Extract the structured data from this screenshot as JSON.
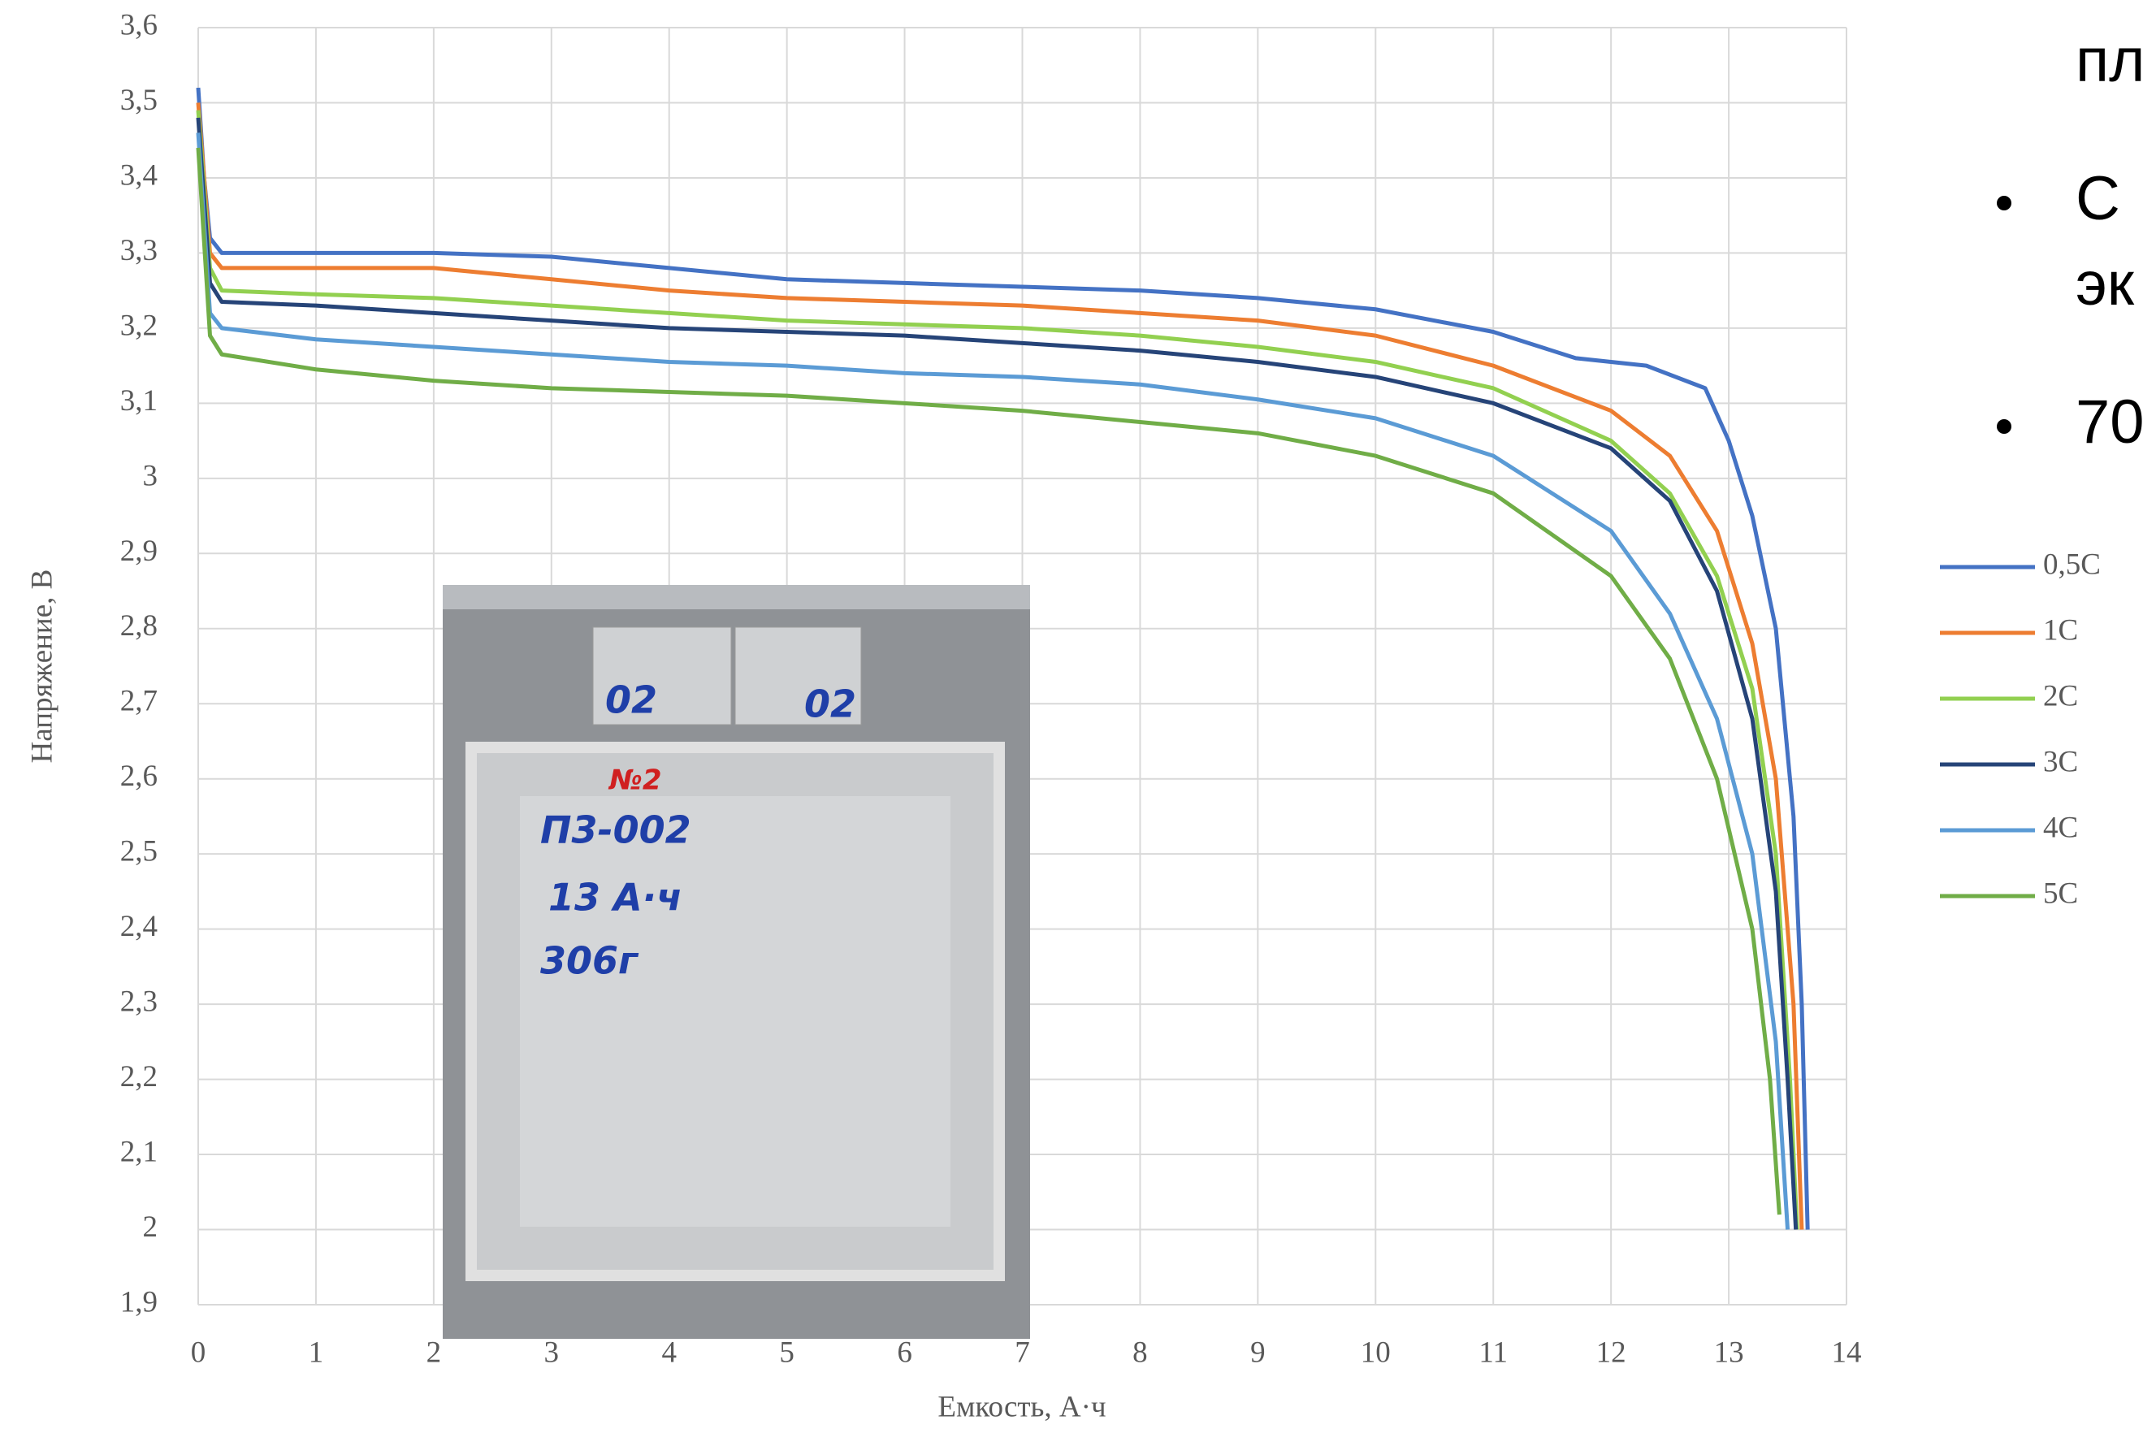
{
  "chart_data": {
    "type": "line",
    "y_label": "Напряжение, В",
    "x_label": "Емкость, А·ч",
    "xlim": [
      0,
      14
    ],
    "xticks": [
      0,
      1,
      2,
      3,
      4,
      5,
      6,
      7,
      8,
      9,
      10,
      11,
      12,
      13,
      14
    ],
    "ylim": [
      1.9,
      3.6
    ],
    "yticks": [
      {
        "value": 1.9,
        "label": "1,9"
      },
      {
        "value": 2,
        "label": "2"
      },
      {
        "value": 2.1,
        "label": "2,1"
      },
      {
        "value": 2.2,
        "label": "2,2"
      },
      {
        "value": 2.3,
        "label": "2,3"
      },
      {
        "value": 2.4,
        "label": "2,4"
      },
      {
        "value": 2.5,
        "label": "2,5"
      },
      {
        "value": 2.6,
        "label": "2,6"
      },
      {
        "value": 2.7,
        "label": "2,7"
      },
      {
        "value": 2.8,
        "label": "2,8"
      },
      {
        "value": 2.9,
        "label": "2,9"
      },
      {
        "value": 3,
        "label": "3"
      },
      {
        "value": 3.1,
        "label": "3,1"
      },
      {
        "value": 3.2,
        "label": "3,2"
      },
      {
        "value": 3.3,
        "label": "3,3"
      },
      {
        "value": 3.4,
        "label": "3,4"
      },
      {
        "value": 3.5,
        "label": "3,5"
      },
      {
        "value": 3.6,
        "label": "3,6"
      }
    ],
    "grid": true,
    "legend": "right",
    "series": [
      {
        "name": "0,5C",
        "color": "#4472c4",
        "x": [
          0,
          0.05,
          0.1,
          0.2,
          1,
          2,
          3,
          4,
          5,
          6,
          7,
          8,
          9,
          10,
          11,
          11.7,
          12.3,
          12.8,
          13.0,
          13.2,
          13.4,
          13.55,
          13.62,
          13.67
        ],
        "values": [
          3.52,
          3.4,
          3.32,
          3.3,
          3.3,
          3.3,
          3.295,
          3.28,
          3.265,
          3.26,
          3.255,
          3.25,
          3.24,
          3.225,
          3.195,
          3.16,
          3.15,
          3.12,
          3.05,
          2.95,
          2.8,
          2.55,
          2.3,
          2.0
        ]
      },
      {
        "name": "1C",
        "color": "#ed7d31",
        "x": [
          0,
          0.1,
          0.2,
          1,
          2,
          3,
          4,
          5,
          6,
          7,
          8,
          9,
          10,
          11,
          12,
          12.5,
          12.9,
          13.2,
          13.4,
          13.55,
          13.62
        ],
        "values": [
          3.5,
          3.3,
          3.28,
          3.28,
          3.28,
          3.265,
          3.25,
          3.24,
          3.235,
          3.23,
          3.22,
          3.21,
          3.19,
          3.15,
          3.09,
          3.03,
          2.93,
          2.78,
          2.6,
          2.3,
          2.0
        ]
      },
      {
        "name": "2C",
        "color": "#92d050",
        "x": [
          0,
          0.1,
          0.2,
          1,
          2,
          3,
          4,
          5,
          6,
          7,
          8,
          9,
          10,
          11,
          12,
          12.5,
          12.9,
          13.2,
          13.4,
          13.52,
          13.58
        ],
        "values": [
          3.49,
          3.28,
          3.25,
          3.245,
          3.24,
          3.23,
          3.22,
          3.21,
          3.205,
          3.2,
          3.19,
          3.175,
          3.155,
          3.12,
          3.05,
          2.98,
          2.87,
          2.72,
          2.5,
          2.2,
          2.0
        ]
      },
      {
        "name": "3C",
        "color": "#264478",
        "x": [
          0,
          0.1,
          0.2,
          1,
          2,
          3,
          4,
          5,
          6,
          7,
          8,
          9,
          10,
          11,
          12,
          12.5,
          12.9,
          13.2,
          13.4,
          13.5,
          13.57
        ],
        "values": [
          3.48,
          3.26,
          3.235,
          3.23,
          3.22,
          3.21,
          3.2,
          3.195,
          3.19,
          3.18,
          3.17,
          3.155,
          3.135,
          3.1,
          3.04,
          2.97,
          2.85,
          2.68,
          2.45,
          2.2,
          2.0
        ]
      },
      {
        "name": "4C",
        "color": "#5b9bd5",
        "x": [
          0,
          0.1,
          0.2,
          1,
          2,
          3,
          4,
          5,
          6,
          7,
          8,
          9,
          10,
          11,
          12,
          12.5,
          12.9,
          13.2,
          13.4,
          13.5
        ],
        "values": [
          3.46,
          3.22,
          3.2,
          3.185,
          3.175,
          3.165,
          3.155,
          3.15,
          3.14,
          3.135,
          3.125,
          3.105,
          3.08,
          3.03,
          2.93,
          2.82,
          2.68,
          2.5,
          2.25,
          2.0
        ]
      },
      {
        "name": "5C",
        "color": "#70ad47",
        "x": [
          0,
          0.1,
          0.2,
          1,
          2,
          3,
          4,
          5,
          6,
          7,
          8,
          9,
          10,
          11,
          12,
          12.5,
          12.9,
          13.2,
          13.35,
          13.43
        ],
        "values": [
          3.44,
          3.19,
          3.165,
          3.145,
          3.13,
          3.12,
          3.115,
          3.11,
          3.1,
          3.09,
          3.075,
          3.06,
          3.03,
          2.98,
          2.87,
          2.76,
          2.6,
          2.4,
          2.2,
          2.02
        ]
      }
    ]
  },
  "photo": {
    "labels": [
      "02",
      "02",
      "№2",
      "П3-002",
      "13 А·ч",
      "306г"
    ]
  },
  "side_text": [
    "пл",
    "С",
    "эк",
    "70"
  ]
}
